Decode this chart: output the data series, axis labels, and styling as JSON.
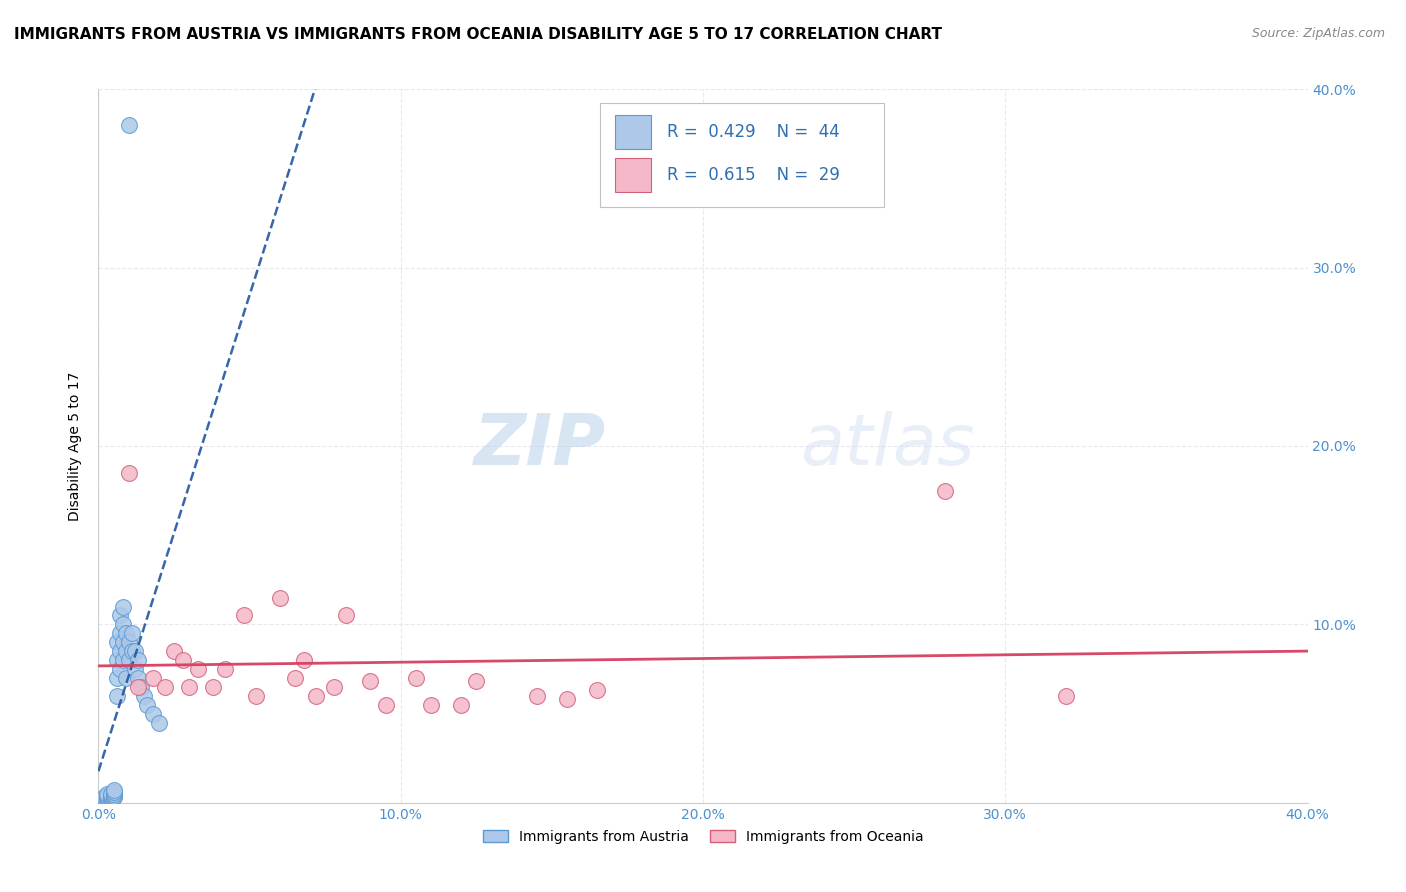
{
  "title": "IMMIGRANTS FROM AUSTRIA VS IMMIGRANTS FROM OCEANIA DISABILITY AGE 5 TO 17 CORRELATION CHART",
  "source": "Source: ZipAtlas.com",
  "ylabel": "Disability Age 5 to 17",
  "xlim": [
    0.0,
    0.4
  ],
  "ylim": [
    0.0,
    0.4
  ],
  "austria_color": "#adc8e8",
  "austria_edge_color": "#5b9bd5",
  "oceania_color": "#f4b8c8",
  "oceania_edge_color": "#d4607a",
  "austria_line_color": "#2255a0",
  "oceania_line_color": "#d44060",
  "legend_text_color": "#3070b0",
  "tick_label_color": "#4a90d0",
  "title_fontsize": 11,
  "marker_size": 130,
  "grid_color": "#e8e8ee",
  "bg_color": "#ffffff",
  "austria_x": [
    0.002,
    0.002,
    0.003,
    0.003,
    0.003,
    0.003,
    0.004,
    0.004,
    0.004,
    0.004,
    0.005,
    0.005,
    0.005,
    0.005,
    0.005,
    0.006,
    0.006,
    0.006,
    0.006,
    0.007,
    0.007,
    0.007,
    0.007,
    0.008,
    0.008,
    0.008,
    0.008,
    0.009,
    0.009,
    0.009,
    0.01,
    0.01,
    0.011,
    0.011,
    0.012,
    0.012,
    0.013,
    0.013,
    0.014,
    0.015,
    0.016,
    0.018,
    0.02,
    0.01
  ],
  "austria_y": [
    0.002,
    0.003,
    0.002,
    0.003,
    0.004,
    0.005,
    0.002,
    0.003,
    0.004,
    0.005,
    0.003,
    0.004,
    0.005,
    0.006,
    0.007,
    0.06,
    0.07,
    0.08,
    0.09,
    0.075,
    0.085,
    0.095,
    0.105,
    0.08,
    0.09,
    0.1,
    0.11,
    0.07,
    0.085,
    0.095,
    0.08,
    0.09,
    0.085,
    0.095,
    0.075,
    0.085,
    0.07,
    0.08,
    0.065,
    0.06,
    0.055,
    0.05,
    0.045,
    0.38
  ],
  "oceania_x": [
    0.01,
    0.013,
    0.018,
    0.022,
    0.025,
    0.028,
    0.03,
    0.033,
    0.038,
    0.042,
    0.048,
    0.052,
    0.06,
    0.065,
    0.068,
    0.072,
    0.078,
    0.082,
    0.09,
    0.095,
    0.105,
    0.11,
    0.12,
    0.125,
    0.145,
    0.155,
    0.165,
    0.28,
    0.32
  ],
  "oceania_y": [
    0.185,
    0.065,
    0.07,
    0.065,
    0.085,
    0.08,
    0.065,
    0.075,
    0.065,
    0.075,
    0.105,
    0.06,
    0.115,
    0.07,
    0.08,
    0.06,
    0.065,
    0.105,
    0.068,
    0.055,
    0.07,
    0.055,
    0.055,
    0.068,
    0.06,
    0.058,
    0.063,
    0.175,
    0.06
  ],
  "watermark_zip": "ZIP",
  "watermark_atlas": "atlas"
}
